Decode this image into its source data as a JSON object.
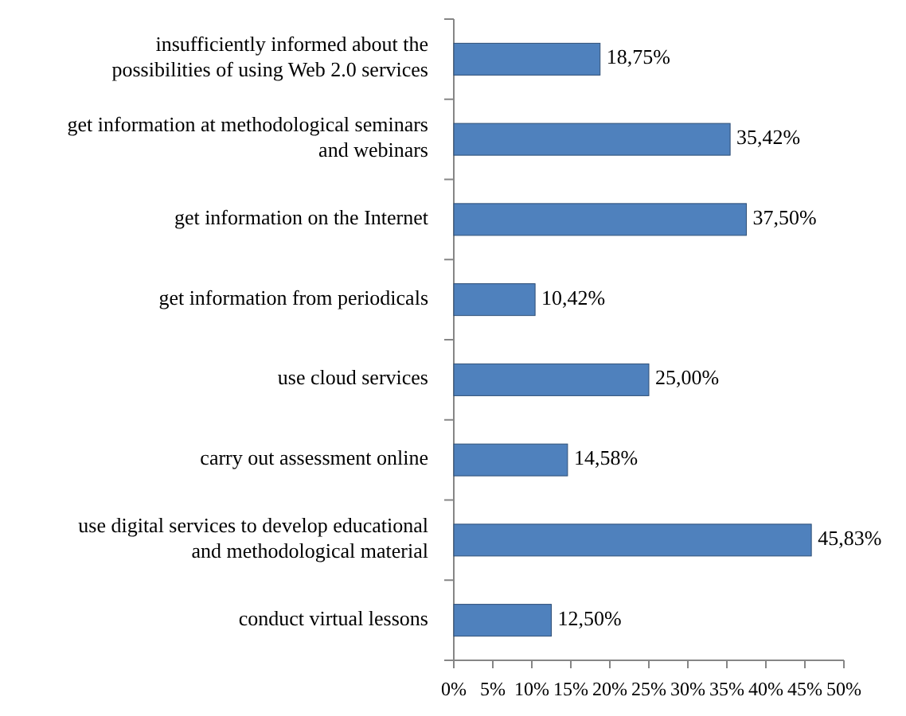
{
  "chart_data": {
    "type": "bar",
    "orientation": "horizontal",
    "categories": [
      "insufficiently informed about the possibilities of using Web 2.0 services",
      "get information at methodological seminars and webinars",
      "get information on the Internet",
      "get information from periodicals",
      "use cloud services",
      "carry out assessment online",
      "use digital services to develop educational and methodological material",
      "conduct virtual lessons"
    ],
    "values": [
      18.75,
      35.42,
      37.5,
      10.42,
      25,
      14.58,
      45.83,
      12.5
    ],
    "value_labels": [
      "18,75%",
      "35,42%",
      "37,50%",
      "10,42%",
      "25,00%",
      "14,58%",
      "45,83%",
      "12,50%"
    ],
    "color": "#4f81bd",
    "xlim": [
      0,
      50
    ],
    "xticks": [
      {
        "value": 0,
        "label": "0%"
      },
      {
        "value": 5,
        "label": "5%"
      },
      {
        "value": 10,
        "label": "10%"
      },
      {
        "value": 15,
        "label": "15%"
      },
      {
        "value": 20,
        "label": "20%"
      },
      {
        "value": 25,
        "label": "25%"
      },
      {
        "value": 30,
        "label": "30%"
      },
      {
        "value": 35,
        "label": "35%"
      },
      {
        "value": 40,
        "label": "40%"
      },
      {
        "value": 45,
        "label": "45%"
      },
      {
        "value": 50,
        "label": "50%"
      }
    ]
  }
}
